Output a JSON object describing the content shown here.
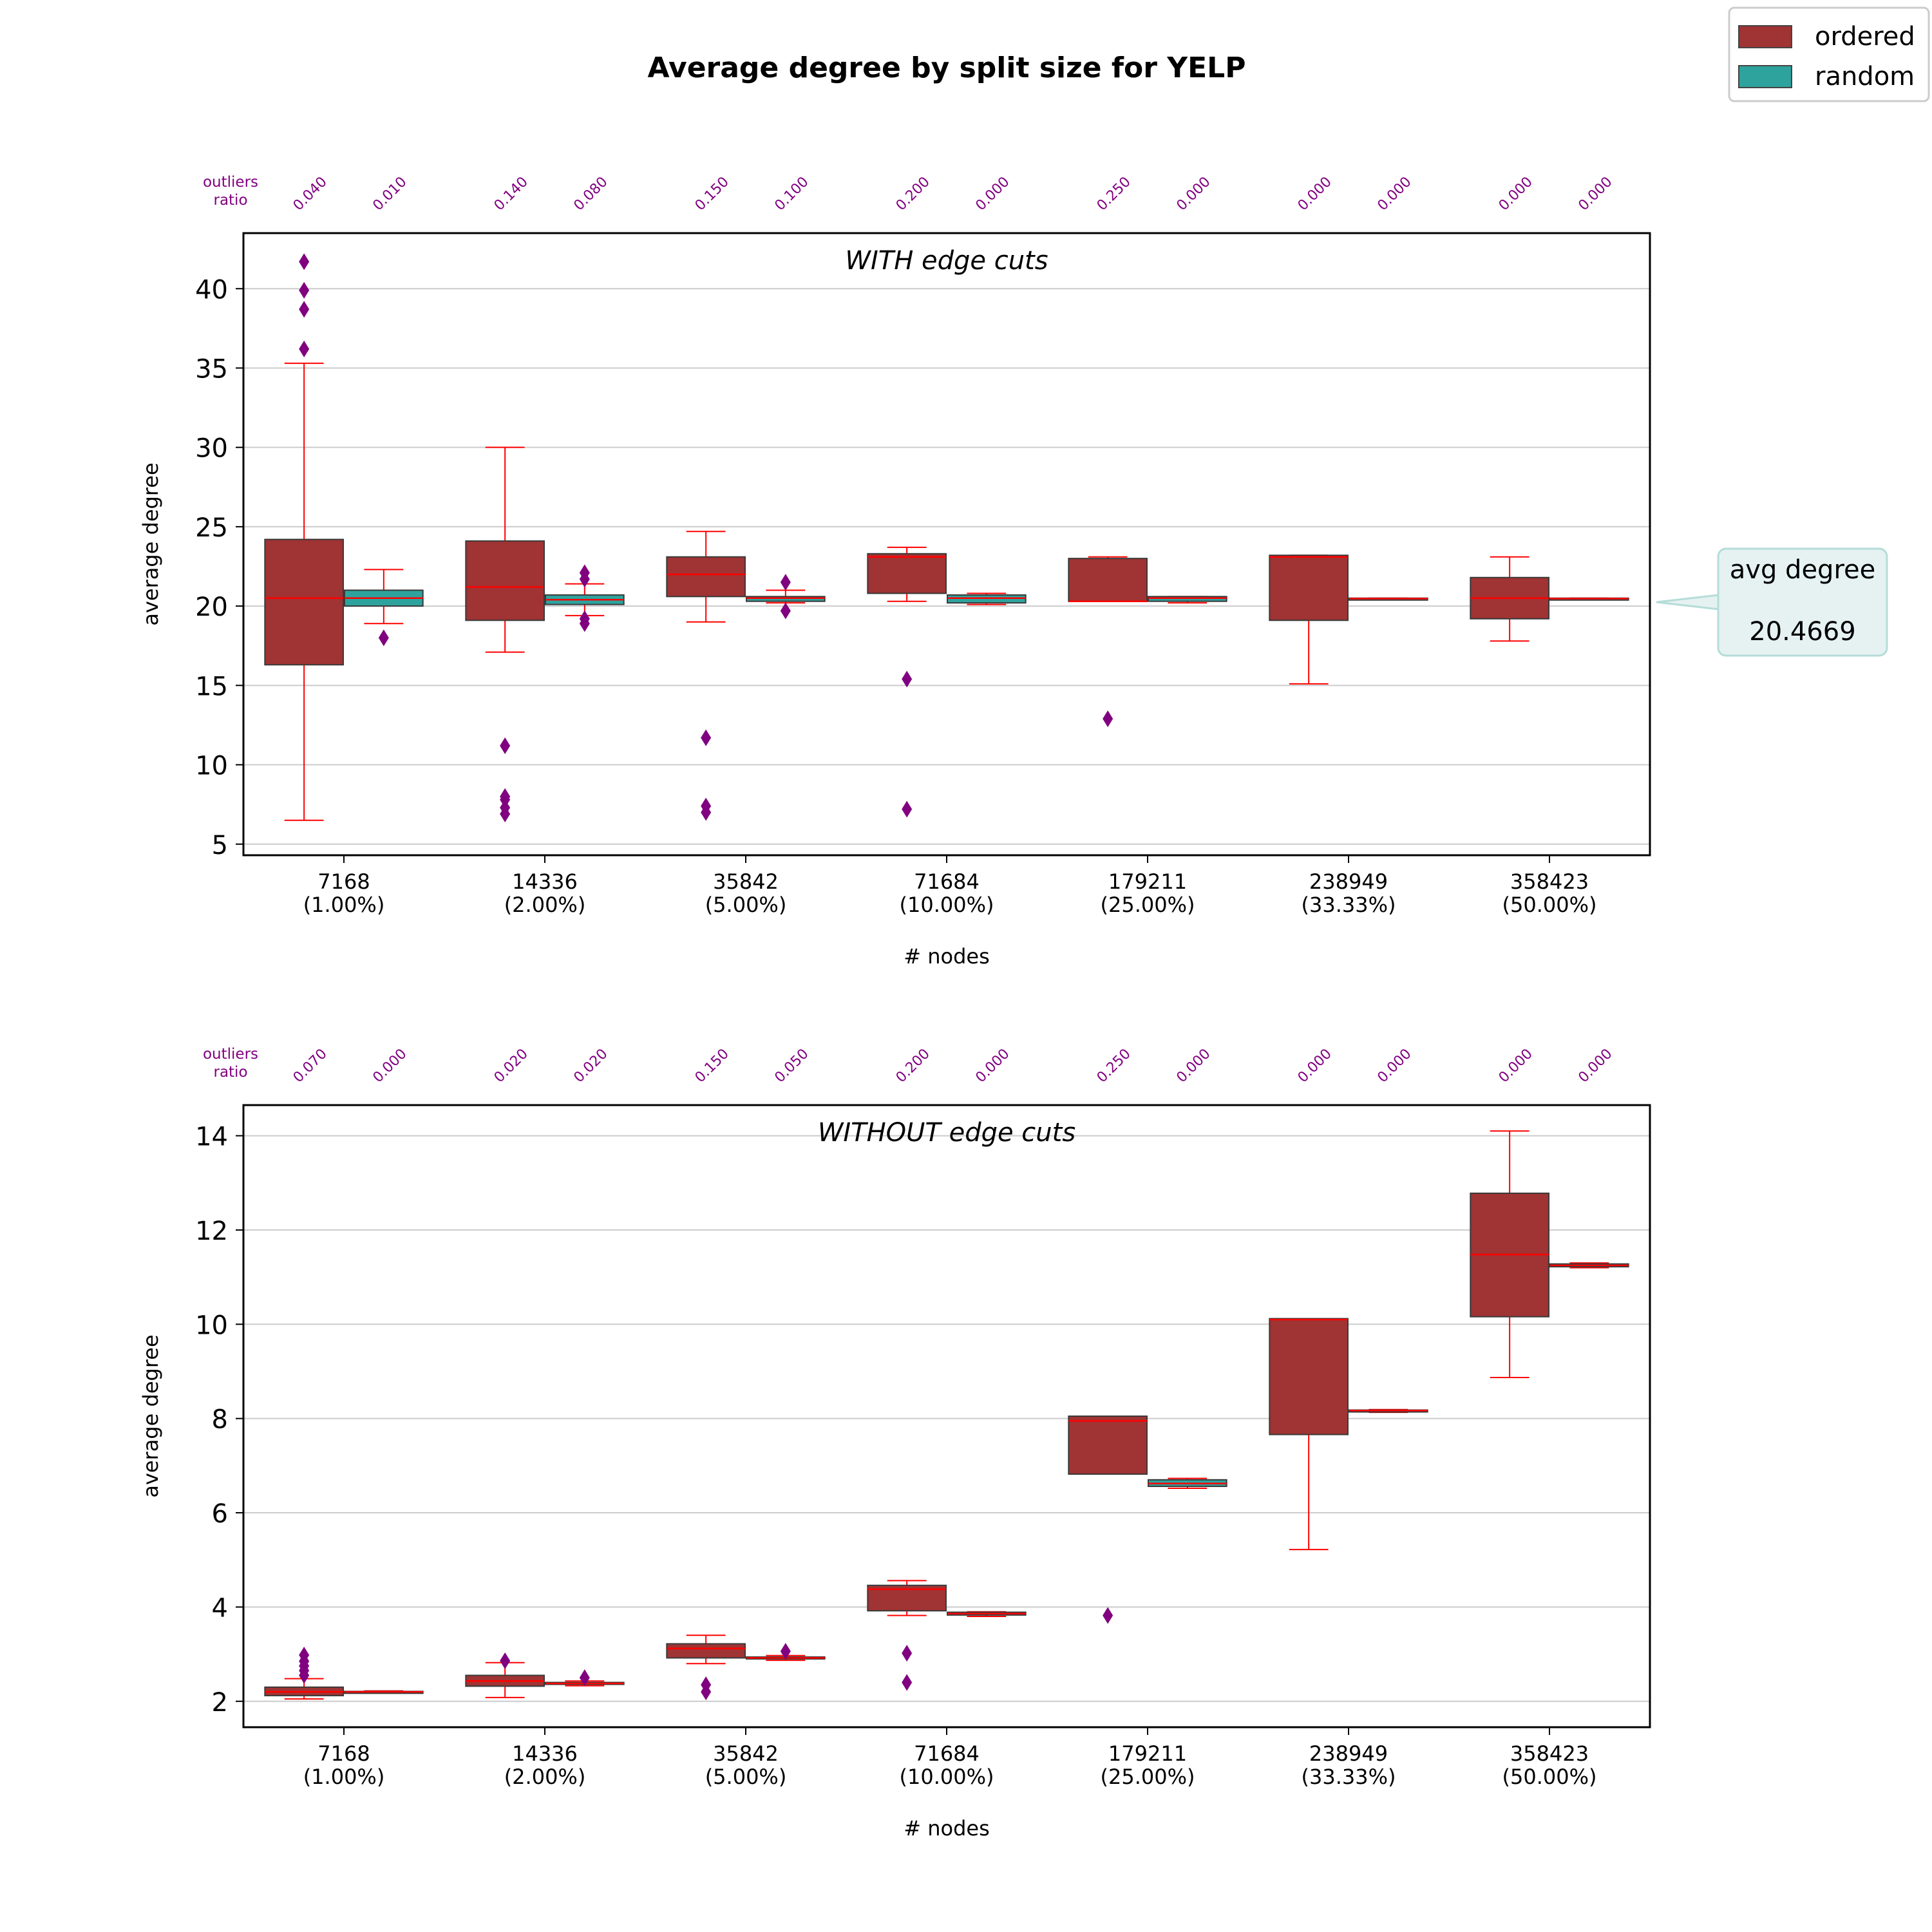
{
  "title": "Average degree by split size for YELP",
  "legend": {
    "placement": "top-right",
    "items": [
      {
        "label": "ordered",
        "color": "#a03333"
      },
      {
        "label": "random",
        "color": "#2ea39e"
      }
    ]
  },
  "callout": {
    "label": "avg degree",
    "value": "20.4669",
    "y": 20.4669
  },
  "outliers_label_line1": "outliers",
  "outliers_label_line2": "ratio",
  "colors": {
    "ordered": "#a03333",
    "random": "#2ea39e",
    "outlier": "#800080",
    "whisker": "#ff0000",
    "grid": "#cccccc"
  },
  "chart_data": [
    {
      "type": "box",
      "subtitle": "WITH edge cuts",
      "xlabel": "# nodes",
      "ylabel": "average degree",
      "ylim": [
        4.3,
        43.5
      ],
      "yticks": [
        5,
        10,
        15,
        20,
        25,
        30,
        35,
        40
      ],
      "grid": true,
      "categories": [
        {
          "label": "7168",
          "sub": "(1.00%)"
        },
        {
          "label": "14336",
          "sub": "(2.00%)"
        },
        {
          "label": "35842",
          "sub": "(5.00%)"
        },
        {
          "label": "71684",
          "sub": "(10.00%)"
        },
        {
          "label": "179211",
          "sub": "(25.00%)"
        },
        {
          "label": "238949",
          "sub": "(33.33%)"
        },
        {
          "label": "358423",
          "sub": "(50.00%)"
        }
      ],
      "outlier_ratios": [
        "0.040",
        "0.010",
        "0.140",
        "0.080",
        "0.150",
        "0.100",
        "0.200",
        "0.000",
        "0.250",
        "0.000",
        "0.000",
        "0.000",
        "0.000",
        "0.000"
      ],
      "series": [
        {
          "name": "ordered",
          "boxes": [
            {
              "low": 6.5,
              "q1": 16.3,
              "median": 20.5,
              "q3": 24.2,
              "high": 35.3,
              "outliers": [
                36.2,
                38.7,
                39.9,
                41.7
              ]
            },
            {
              "low": 17.1,
              "q1": 19.1,
              "median": 21.2,
              "q3": 24.1,
              "high": 30.0,
              "outliers": [
                6.9,
                7.3,
                7.8,
                8.0,
                11.2
              ]
            },
            {
              "low": 19.0,
              "q1": 20.6,
              "median": 22.0,
              "q3": 23.1,
              "high": 24.7,
              "outliers": [
                7.0,
                7.4,
                11.7
              ]
            },
            {
              "low": 20.3,
              "q1": 20.8,
              "median": 23.1,
              "q3": 23.3,
              "high": 23.7,
              "outliers": [
                7.2,
                15.4
              ]
            },
            {
              "low": 20.3,
              "q1": 20.3,
              "median": 20.3,
              "q3": 23.0,
              "high": 23.1,
              "outliers": [
                12.9
              ]
            },
            {
              "low": 15.1,
              "q1": 19.1,
              "median": 23.1,
              "q3": 23.2,
              "high": 23.2,
              "outliers": []
            },
            {
              "low": 17.8,
              "q1": 19.2,
              "median": 20.5,
              "q3": 21.8,
              "high": 23.1,
              "outliers": []
            }
          ]
        },
        {
          "name": "random",
          "boxes": [
            {
              "low": 18.9,
              "q1": 20.0,
              "median": 20.5,
              "q3": 21.0,
              "high": 22.3,
              "outliers": [
                18.0
              ]
            },
            {
              "low": 19.4,
              "q1": 20.1,
              "median": 20.4,
              "q3": 20.7,
              "high": 21.4,
              "outliers": [
                18.9,
                19.2,
                21.7,
                22.1
              ]
            },
            {
              "low": 20.2,
              "q1": 20.3,
              "median": 20.5,
              "q3": 20.6,
              "high": 21.0,
              "outliers": [
                19.7,
                21.5
              ]
            },
            {
              "low": 20.1,
              "q1": 20.2,
              "median": 20.5,
              "q3": 20.7,
              "high": 20.8,
              "outliers": []
            },
            {
              "low": 20.2,
              "q1": 20.3,
              "median": 20.5,
              "q3": 20.6,
              "high": 20.6,
              "outliers": []
            },
            {
              "low": 20.45,
              "q1": 20.45,
              "median": 20.47,
              "q3": 20.5,
              "high": 20.5,
              "outliers": []
            },
            {
              "low": 20.45,
              "q1": 20.45,
              "median": 20.47,
              "q3": 20.5,
              "high": 20.5,
              "outliers": []
            }
          ]
        }
      ]
    },
    {
      "type": "box",
      "subtitle": "WITHOUT edge cuts",
      "xlabel": "# nodes",
      "ylabel": "average degree",
      "ylim": [
        1.45,
        14.65
      ],
      "yticks": [
        2,
        4,
        6,
        8,
        10,
        12,
        14
      ],
      "grid": true,
      "categories": [
        {
          "label": "7168",
          "sub": "(1.00%)"
        },
        {
          "label": "14336",
          "sub": "(2.00%)"
        },
        {
          "label": "35842",
          "sub": "(5.00%)"
        },
        {
          "label": "71684",
          "sub": "(10.00%)"
        },
        {
          "label": "179211",
          "sub": "(25.00%)"
        },
        {
          "label": "238949",
          "sub": "(33.33%)"
        },
        {
          "label": "358423",
          "sub": "(50.00%)"
        }
      ],
      "outlier_ratios": [
        "0.070",
        "0.000",
        "0.020",
        "0.020",
        "0.150",
        "0.050",
        "0.200",
        "0.000",
        "0.250",
        "0.000",
        "0.000",
        "0.000",
        "0.000",
        "0.000"
      ],
      "series": [
        {
          "name": "ordered",
          "boxes": [
            {
              "low": 2.05,
              "q1": 2.12,
              "median": 2.2,
              "q3": 2.3,
              "high": 2.48,
              "outliers": [
                2.55,
                2.65,
                2.75,
                2.85,
                2.98
              ]
            },
            {
              "low": 2.08,
              "q1": 2.32,
              "median": 2.43,
              "q3": 2.55,
              "high": 2.82,
              "outliers": [
                2.86
              ]
            },
            {
              "low": 2.8,
              "q1": 2.92,
              "median": 3.12,
              "q3": 3.22,
              "high": 3.4,
              "outliers": [
                2.2,
                2.35
              ]
            },
            {
              "low": 3.82,
              "q1": 3.92,
              "median": 4.38,
              "q3": 4.46,
              "high": 4.56,
              "outliers": [
                2.4,
                3.02
              ]
            },
            {
              "low": 6.82,
              "q1": 6.82,
              "median": 7.95,
              "q3": 8.05,
              "high": 8.05,
              "outliers": [
                3.82
              ]
            },
            {
              "low": 5.22,
              "q1": 7.66,
              "median": 10.1,
              "q3": 10.12,
              "high": 10.12,
              "outliers": []
            },
            {
              "low": 8.87,
              "q1": 10.16,
              "median": 11.48,
              "q3": 12.78,
              "high": 14.1,
              "outliers": []
            }
          ]
        },
        {
          "name": "random",
          "boxes": [
            {
              "low": 2.18,
              "q1": 2.19,
              "median": 2.2,
              "q3": 2.21,
              "high": 2.22,
              "outliers": []
            },
            {
              "low": 2.33,
              "q1": 2.36,
              "median": 2.38,
              "q3": 2.4,
              "high": 2.43,
              "outliers": [
                2.5
              ]
            },
            {
              "low": 2.87,
              "q1": 2.91,
              "median": 2.92,
              "q3": 2.94,
              "high": 2.97,
              "outliers": [
                3.06
              ]
            },
            {
              "low": 3.8,
              "q1": 3.83,
              "median": 3.86,
              "q3": 3.89,
              "high": 3.9,
              "outliers": []
            },
            {
              "low": 6.52,
              "q1": 6.56,
              "median": 6.62,
              "q3": 6.7,
              "high": 6.73,
              "outliers": []
            },
            {
              "low": 8.13,
              "q1": 8.15,
              "median": 8.17,
              "q3": 8.18,
              "high": 8.19,
              "outliers": []
            },
            {
              "low": 11.2,
              "q1": 11.22,
              "median": 11.25,
              "q3": 11.28,
              "high": 11.3,
              "outliers": []
            }
          ]
        }
      ]
    }
  ]
}
